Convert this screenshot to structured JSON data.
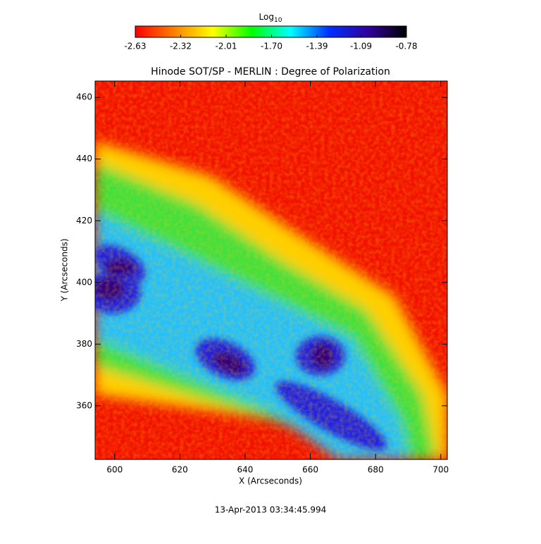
{
  "chart_data": {
    "type": "image",
    "title": "Hinode SOT/SP - MERLIN : Degree of Polarization",
    "x_label": "X (Arcseconds)",
    "y_label": "Y (Arcseconds)",
    "footer": "13-Apr-2013 03:34:45.994",
    "xlim": [
      594,
      702
    ],
    "ylim": [
      342.6,
      465.3
    ],
    "xticks": [
      600,
      620,
      640,
      660,
      680,
      700
    ],
    "yticks": [
      360,
      380,
      400,
      420,
      440,
      460
    ],
    "colorbar": {
      "label": "Log",
      "label_subscript": "10",
      "lim": [
        -2.63,
        -0.78
      ],
      "ticks": [
        -2.63,
        -2.32,
        -2.01,
        {
          "value": -1.7,
          "label": "-1.70"
        },
        -1.39,
        -1.09,
        -0.78
      ],
      "colors": [
        "#ff0000",
        "#ff8000",
        "#ffff00",
        "#00ff00",
        "#00ffff",
        "#0030ff",
        "#3000a0",
        "#000000"
      ]
    }
  }
}
